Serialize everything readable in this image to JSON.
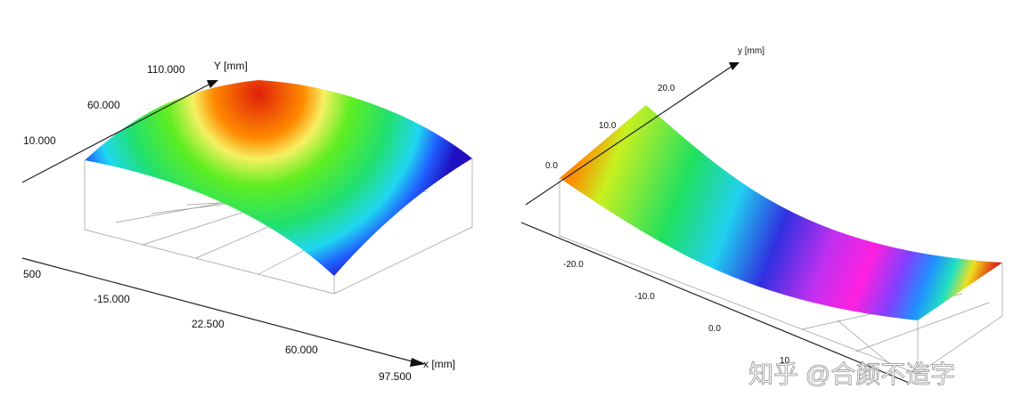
{
  "left_plot": {
    "y_axis_label": "Y [mm]",
    "y_ticks": [
      "110.000",
      "60.000",
      "10.000"
    ],
    "x_axis_label": "x [mm]",
    "x_ticks": [
      "500",
      "-15.000",
      "22.500",
      "60.000",
      "97.500"
    ]
  },
  "right_plot": {
    "y_axis_label": "y [mm]",
    "y_ticks": [
      "20.0",
      "10.0",
      "0.0"
    ],
    "x_ticks": [
      "-20.0",
      "-10.0",
      "0.0",
      "10"
    ]
  },
  "watermark": "知乎 @合颜不造字"
}
